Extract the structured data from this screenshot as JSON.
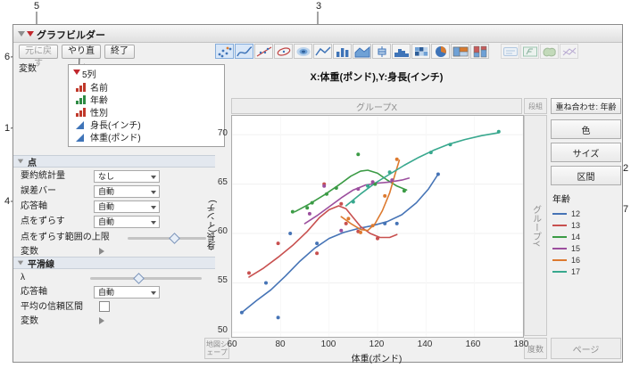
{
  "window": {
    "title": "グラフビルダー"
  },
  "toolbar": {
    "undo": "元に戻す",
    "redo": "やり直し",
    "done": "終了",
    "icons": [
      "points",
      "smoother",
      "line-of-fit",
      "ellipse",
      "contour",
      "line",
      "bar",
      "area",
      "box-plot",
      "histogram",
      "heatmap",
      "pie",
      "treemap",
      "mosaic",
      "caption-box",
      "formula",
      "map-shapes"
    ]
  },
  "variables": {
    "label": "変数",
    "columns_header": "5列",
    "items": [
      {
        "name": "名前",
        "type": "nominal"
      },
      {
        "name": "年齢",
        "type": "ordinal"
      },
      {
        "name": "性別",
        "type": "nominal"
      },
      {
        "name": "身長(インチ)",
        "type": "continuous"
      },
      {
        "name": "体重(ポンド)",
        "type": "continuous"
      }
    ]
  },
  "points": {
    "title": "点",
    "rows": [
      {
        "label": "要約統計量",
        "value": "なし"
      },
      {
        "label": "誤差バー",
        "value": "自動"
      },
      {
        "label": "応答軸",
        "value": "自動"
      },
      {
        "label": "点をずらす",
        "value": "自動"
      }
    ],
    "jitter_label": "点をずらす範囲の上限",
    "vars_label": "変数"
  },
  "smoother": {
    "title": "平滑線",
    "lambda": "λ",
    "axis_label": "応答軸",
    "axis_value": "自動",
    "ci_label": "平均の信頼区間",
    "vars_label": "変数"
  },
  "graph": {
    "title": "X:体重(ポンド),Y:身長(インチ)",
    "zones": {
      "group_x": "グループX",
      "group_y": "グループY",
      "wrap": "段組",
      "overlay": "重ね合わせ: 年齢",
      "color": "色",
      "size": "サイズ",
      "interval": "区間",
      "map_shape": "地図シェープ",
      "freq": "度数",
      "page": "ページ"
    },
    "x_axis": {
      "label": "体重(ポンド)",
      "ticks": [
        60,
        80,
        100,
        120,
        140,
        160,
        180
      ]
    },
    "y_axis": {
      "label": "身長(インチ)",
      "ticks": [
        70,
        65,
        60,
        55,
        50
      ]
    }
  },
  "chart_data": {
    "type": "scatter",
    "title": "X:体重(ポンド),Y:身長(インチ)",
    "xlabel": "体重(ポンド)",
    "ylabel": "身長(インチ)",
    "x_range": [
      60,
      180
    ],
    "y_range": [
      49.55,
      71.9
    ],
    "x_ticks": [
      60,
      80,
      100,
      120,
      140,
      160,
      180
    ],
    "y_ticks": [
      50,
      55,
      60,
      65,
      70
    ],
    "legend_title": "年齢",
    "legend_position": "right",
    "grid": false,
    "series": [
      {
        "name": "12",
        "color": "#4674B6",
        "points": [
          [
            64,
            52
          ],
          [
            74,
            55
          ],
          [
            79,
            51.5
          ],
          [
            84,
            60
          ],
          [
            95,
            59
          ],
          [
            123,
            61
          ],
          [
            128,
            61
          ],
          [
            145,
            66
          ]
        ],
        "curve": [
          [
            64,
            52
          ],
          [
            70,
            53.2
          ],
          [
            76,
            54.3
          ],
          [
            82,
            55.7
          ],
          [
            88,
            57.2
          ],
          [
            94,
            58.5
          ],
          [
            100,
            59.5
          ],
          [
            106,
            60.1
          ],
          [
            112,
            60.5
          ],
          [
            118,
            60.8
          ],
          [
            124,
            61.2
          ],
          [
            130,
            61.9
          ],
          [
            136,
            63.1
          ],
          [
            141,
            64.5
          ],
          [
            145,
            66
          ]
        ]
      },
      {
        "name": "13",
        "color": "#C8504F",
        "points": [
          [
            67,
            56
          ],
          [
            79,
            59
          ],
          [
            95,
            58
          ],
          [
            98,
            65
          ],
          [
            105,
            63
          ],
          [
            107,
            61
          ],
          [
            112,
            60.2
          ],
          [
            120,
            59.5
          ]
        ],
        "curve": [
          [
            67,
            55.6
          ],
          [
            73,
            56.5
          ],
          [
            79,
            57.6
          ],
          [
            85,
            58.8
          ],
          [
            91,
            60.2
          ],
          [
            96,
            61.6
          ],
          [
            100,
            62.4
          ],
          [
            104,
            62.8
          ],
          [
            107,
            62.5
          ],
          [
            110,
            61.6
          ],
          [
            113,
            60.7
          ],
          [
            117,
            60.0
          ],
          [
            121,
            59.6
          ],
          [
            125,
            59.6
          ],
          [
            128,
            59.9
          ]
        ]
      },
      {
        "name": "14",
        "color": "#3B9B45",
        "points": [
          [
            85,
            62.2
          ],
          [
            91,
            62.6
          ],
          [
            93,
            63.1
          ],
          [
            99,
            64
          ],
          [
            103,
            64.6
          ],
          [
            112,
            68
          ],
          [
            119,
            65
          ],
          [
            131,
            64.3
          ]
        ],
        "curve": [
          [
            86,
            62.2
          ],
          [
            92,
            63
          ],
          [
            98,
            63.9
          ],
          [
            104,
            64.9
          ],
          [
            109,
            65.8
          ],
          [
            113,
            66.3
          ],
          [
            116,
            66.4
          ],
          [
            120,
            66.1
          ],
          [
            124,
            65.4
          ],
          [
            128,
            64.8
          ],
          [
            132,
            64.4
          ]
        ]
      },
      {
        "name": "15",
        "color": "#9C4F9E",
        "points": [
          [
            92,
            62
          ],
          [
            98,
            64.8
          ],
          [
            105,
            60.3
          ],
          [
            112,
            64.5
          ],
          [
            118,
            65.2
          ],
          [
            126,
            65.4
          ]
        ],
        "curve": [
          [
            90,
            61
          ],
          [
            95,
            61.8
          ],
          [
            100,
            62.7
          ],
          [
            105,
            63.6
          ],
          [
            110,
            64.4
          ],
          [
            115,
            64.9
          ],
          [
            120,
            65.1
          ],
          [
            125,
            65.2
          ],
          [
            130,
            65.4
          ],
          [
            133,
            65.6
          ]
        ]
      },
      {
        "name": "16",
        "color": "#DD7A2F",
        "points": [
          [
            108,
            61.5
          ],
          [
            113,
            60.1
          ],
          [
            118,
            60.8
          ],
          [
            123,
            63.8
          ],
          [
            128,
            67.5
          ]
        ],
        "curve": [
          [
            105,
            61.7
          ],
          [
            109,
            61
          ],
          [
            113,
            60.4
          ],
          [
            116,
            60.3
          ],
          [
            119,
            61
          ],
          [
            122,
            62.3
          ],
          [
            125,
            64.1
          ],
          [
            127,
            65.8
          ],
          [
            129,
            67.4
          ]
        ]
      },
      {
        "name": "17",
        "color": "#38A88E",
        "points": [
          [
            110,
            63.2
          ],
          [
            116,
            64.8
          ],
          [
            125,
            66.2
          ],
          [
            142,
            68.2
          ],
          [
            150,
            69
          ],
          [
            170,
            70.3
          ]
        ],
        "curve": [
          [
            107,
            62.8
          ],
          [
            113,
            64
          ],
          [
            119,
            65.1
          ],
          [
            125,
            66
          ],
          [
            131,
            66.9
          ],
          [
            137,
            67.7
          ],
          [
            143,
            68.4
          ],
          [
            149,
            69
          ],
          [
            156,
            69.5
          ],
          [
            163,
            69.9
          ],
          [
            170,
            70.2
          ]
        ]
      }
    ]
  },
  "callouts": [
    "1",
    "2",
    "3",
    "4",
    "5",
    "6",
    "7"
  ]
}
